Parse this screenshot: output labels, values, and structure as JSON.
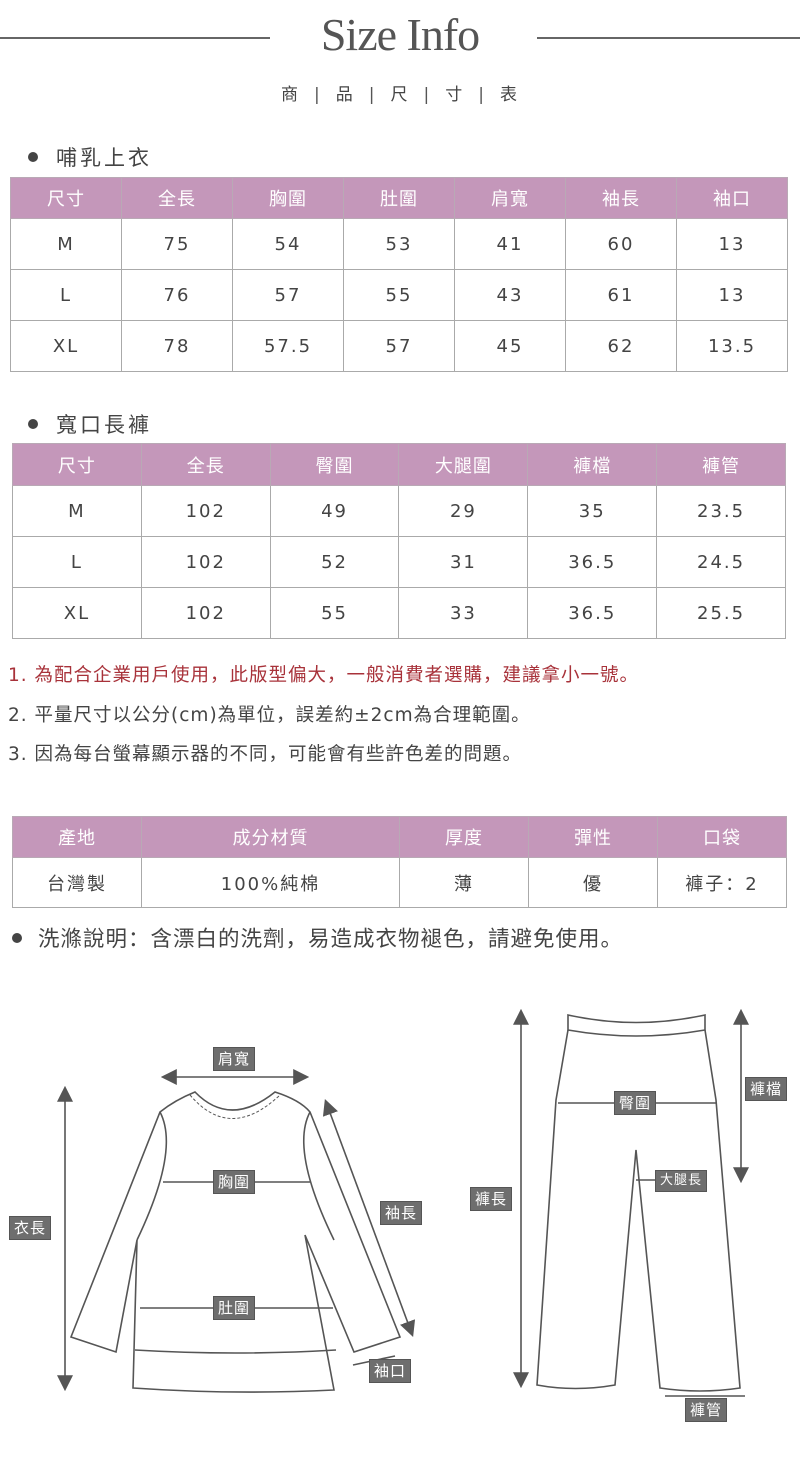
{
  "header": {
    "title": "Size Info",
    "subtitle": [
      "商",
      "品",
      "尺",
      "寸",
      "表"
    ]
  },
  "top": {
    "heading": "哺乳上衣",
    "columns": [
      "尺寸",
      "全長",
      "胸圍",
      "肚圍",
      "肩寬",
      "袖長",
      "袖口"
    ],
    "rows": [
      [
        "M",
        "75",
        "54",
        "53",
        "41",
        "60",
        "13"
      ],
      [
        "L",
        "76",
        "57",
        "55",
        "43",
        "61",
        "13"
      ],
      [
        "XL",
        "78",
        "57.5",
        "57",
        "45",
        "62",
        "13.5"
      ]
    ]
  },
  "pants": {
    "heading": "寬口長褲",
    "columns": [
      "尺寸",
      "全長",
      "臀圍",
      "大腿圍",
      "褲檔",
      "褲管"
    ],
    "rows": [
      [
        "M",
        "102",
        "49",
        "29",
        "35",
        "23.5"
      ],
      [
        "L",
        "102",
        "52",
        "31",
        "36.5",
        "24.5"
      ],
      [
        "XL",
        "102",
        "55",
        "33",
        "36.5",
        "25.5"
      ]
    ]
  },
  "notes": [
    "1. 為配合企業用戶使用，此版型偏大，一般消費者選購，建議拿小一號。",
    "2. 平量尺寸以公分(cm)為單位，誤差約±2cm為合理範圍。",
    "3. 因為每台螢幕顯示器的不同，可能會有些許色差的問題。"
  ],
  "material": {
    "columns": [
      "產地",
      "成分材質",
      "厚度",
      "彈性",
      "口袋"
    ],
    "row": [
      "台灣製",
      "100%純棉",
      "薄",
      "優",
      "褲子：2"
    ]
  },
  "wash_note": "洗滌說明：含漂白的洗劑，易造成衣物褪色，請避免使用。",
  "diagram": {
    "shirt_labels": {
      "shoulder": "肩寬",
      "length": "衣長",
      "chest": "胸圍",
      "sleeve": "袖長",
      "belly": "肚圍",
      "cuff": "袖口"
    },
    "pants_labels": {
      "length": "褲長",
      "hip": "臀圍",
      "rise": "褲檔",
      "thigh": "大腿長",
      "hem": "褲管"
    }
  },
  "colors": {
    "header_bg": "#c497ba",
    "note_red": "#a8323a",
    "label_bg": "#6e6e6e"
  }
}
